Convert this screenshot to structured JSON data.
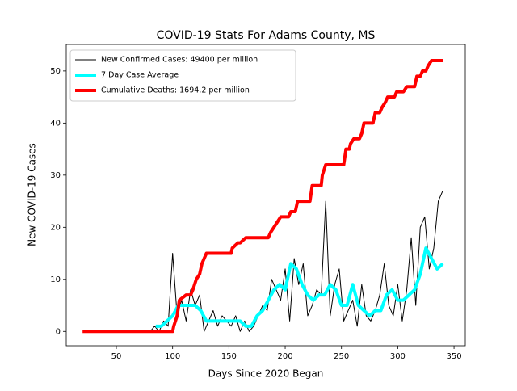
{
  "chart_data": {
    "type": "line",
    "title": "COVID-19 Stats For Adams County, MS",
    "x_label": "Days Since 2020 Began",
    "y_label": "New COVID-19 Cases",
    "xlim": [
      5.5,
      360
    ],
    "ylim": [
      -2.75,
      55.1
    ],
    "xticks": [
      50,
      100,
      150,
      200,
      250,
      300,
      350
    ],
    "yticks": [
      0,
      10,
      20,
      30,
      40,
      50
    ],
    "legend": "upper left",
    "series": [
      {
        "name": "New Confirmed Cases: 49400 per million",
        "color": "#000000",
        "width": 1,
        "x": [
          80,
          84,
          88,
          92,
          96,
          100,
          104,
          108,
          112,
          116,
          120,
          124,
          128,
          132,
          136,
          140,
          144,
          148,
          152,
          156,
          160,
          164,
          168,
          172,
          176,
          180,
          184,
          188,
          192,
          196,
          200,
          204,
          208,
          212,
          216,
          220,
          224,
          228,
          232,
          236,
          240,
          244,
          248,
          252,
          256,
          260,
          264,
          268,
          272,
          276,
          280,
          284,
          288,
          292,
          296,
          300,
          304,
          308,
          312,
          316,
          320,
          324,
          328,
          332,
          336,
          340
        ],
        "values": [
          0,
          1,
          0,
          2,
          1,
          15,
          3,
          6,
          2,
          8,
          5,
          7,
          0,
          2,
          4,
          1,
          3,
          2,
          1,
          3,
          0,
          2,
          0,
          1,
          3,
          5,
          4,
          10,
          8,
          6,
          12,
          2,
          14,
          9,
          13,
          3,
          5,
          8,
          7,
          25,
          3,
          9,
          12,
          2,
          4,
          6,
          1,
          9,
          3,
          2,
          4,
          7,
          13,
          5,
          3,
          9,
          2,
          8,
          18,
          5,
          20,
          22,
          12,
          16,
          25,
          27
        ]
      },
      {
        "name": "7 Day Case Average",
        "color": "#00ffff",
        "width": 4,
        "x": [
          85,
          90,
          95,
          100,
          105,
          110,
          115,
          120,
          125,
          130,
          135,
          140,
          145,
          150,
          155,
          160,
          165,
          170,
          175,
          180,
          185,
          190,
          195,
          200,
          205,
          210,
          215,
          220,
          225,
          230,
          235,
          240,
          245,
          250,
          255,
          260,
          265,
          270,
          275,
          280,
          285,
          290,
          295,
          300,
          305,
          310,
          315,
          320,
          325,
          330,
          335,
          340
        ],
        "values": [
          1,
          1,
          2,
          3,
          5,
          5,
          5,
          5,
          4,
          2,
          2,
          2,
          2,
          2,
          2,
          2,
          1,
          1,
          3,
          4,
          6,
          8,
          9,
          8,
          13,
          12,
          9,
          7,
          6,
          7,
          7,
          9,
          8,
          5,
          5,
          9,
          5,
          4,
          3,
          4,
          4,
          7,
          8,
          6,
          6,
          7,
          8,
          11,
          16,
          14,
          12,
          13
        ]
      },
      {
        "name": "Cumulative Deaths: 1694.2 per million",
        "color": "#ff0000",
        "width": 4,
        "x": [
          20,
          100,
          101,
          104,
          106,
          112,
          116,
          118,
          121,
          124,
          126,
          130,
          152,
          153,
          158,
          160,
          165,
          185,
          187,
          190,
          193,
          196,
          203,
          205,
          209,
          211,
          222,
          224,
          232,
          233,
          236,
          252,
          254,
          257,
          258,
          261,
          266,
          268,
          270,
          278,
          280,
          284,
          286,
          289,
          291,
          297,
          299,
          305,
          308,
          315,
          317,
          320,
          322,
          325,
          327,
          330,
          340
        ],
        "values": [
          0,
          0,
          1,
          3,
          6,
          7,
          7,
          8,
          10,
          11,
          13,
          15,
          15,
          16,
          17,
          17,
          18,
          18,
          19,
          20,
          21,
          22,
          22,
          23,
          23,
          25,
          25,
          28,
          28,
          30,
          32,
          32,
          35,
          35,
          36,
          37,
          37,
          38,
          40,
          40,
          42,
          42,
          43,
          44,
          45,
          45,
          46,
          46,
          47,
          47,
          49,
          49,
          50,
          50,
          51,
          52,
          52
        ]
      }
    ]
  }
}
